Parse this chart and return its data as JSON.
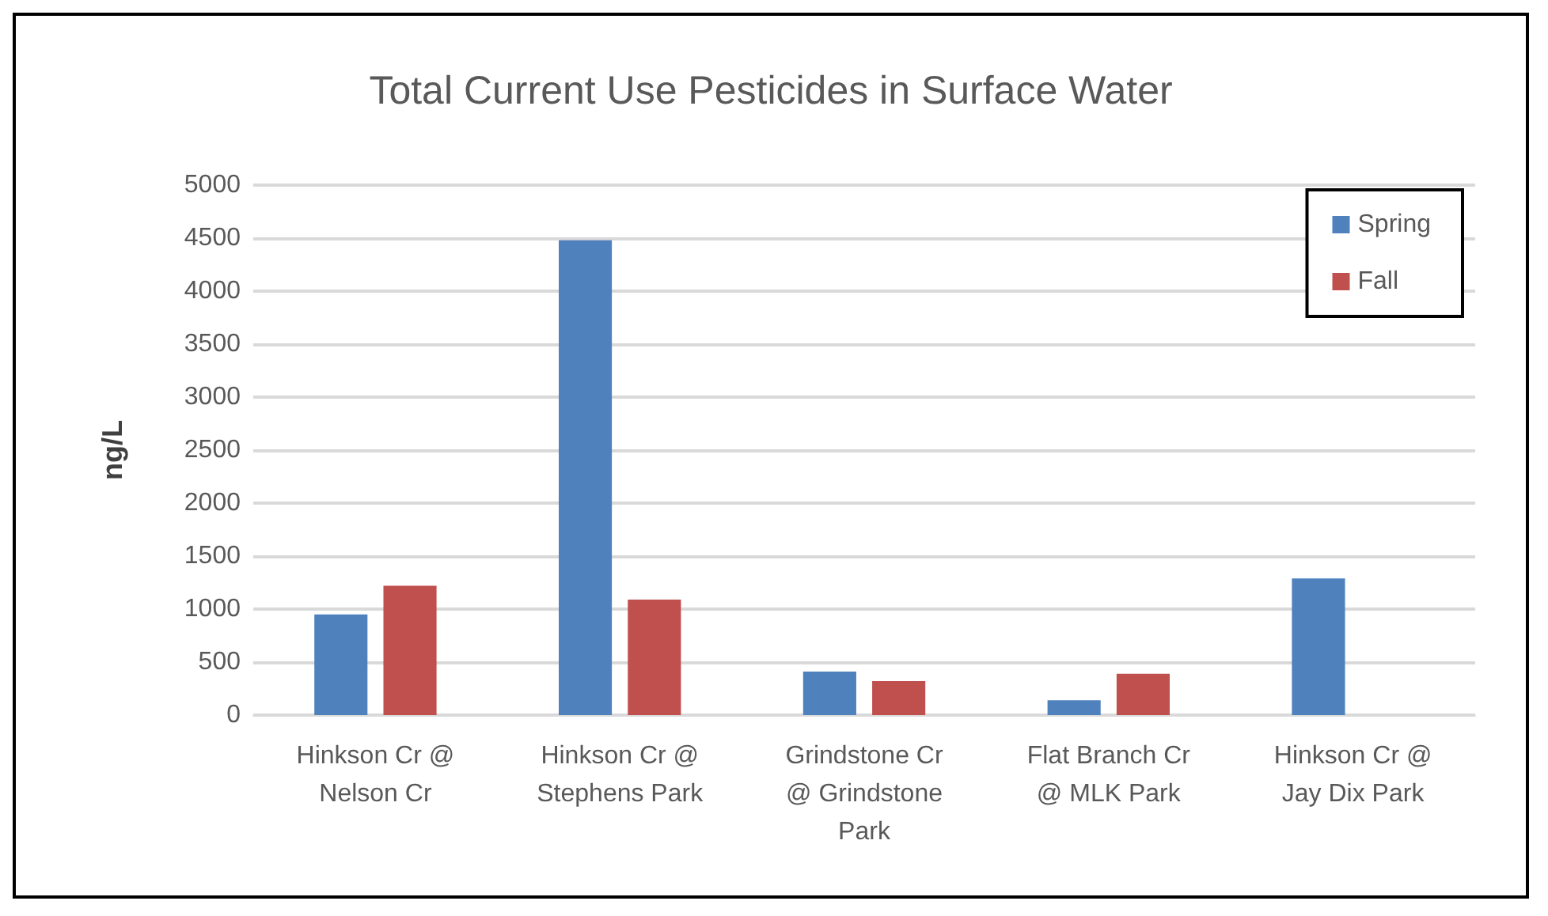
{
  "chart_data": {
    "type": "bar",
    "title": "Total Current Use Pesticides in Surface Water",
    "ylabel": "ng/L",
    "categories": [
      "Hinkson Cr @\nNelson Cr",
      "Hinkson Cr @\nStephens Park",
      "Grindstone Cr\n@ Grindstone\nPark",
      "Flat Branch Cr\n@ MLK Park",
      "Hinkson Cr @\nJay Dix Park"
    ],
    "series": [
      {
        "name": "Spring",
        "color": "#4f81bd",
        "values": [
          950,
          4480,
          410,
          140,
          1290
        ]
      },
      {
        "name": "Fall",
        "color": "#c0504d",
        "values": [
          1220,
          1090,
          320,
          390,
          null
        ]
      }
    ],
    "ylim": [
      0,
      5000
    ],
    "yticks": [
      0,
      500,
      1000,
      1500,
      2000,
      2500,
      3000,
      3500,
      4000,
      4500,
      5000
    ],
    "grid": "y",
    "legend": "top right"
  }
}
